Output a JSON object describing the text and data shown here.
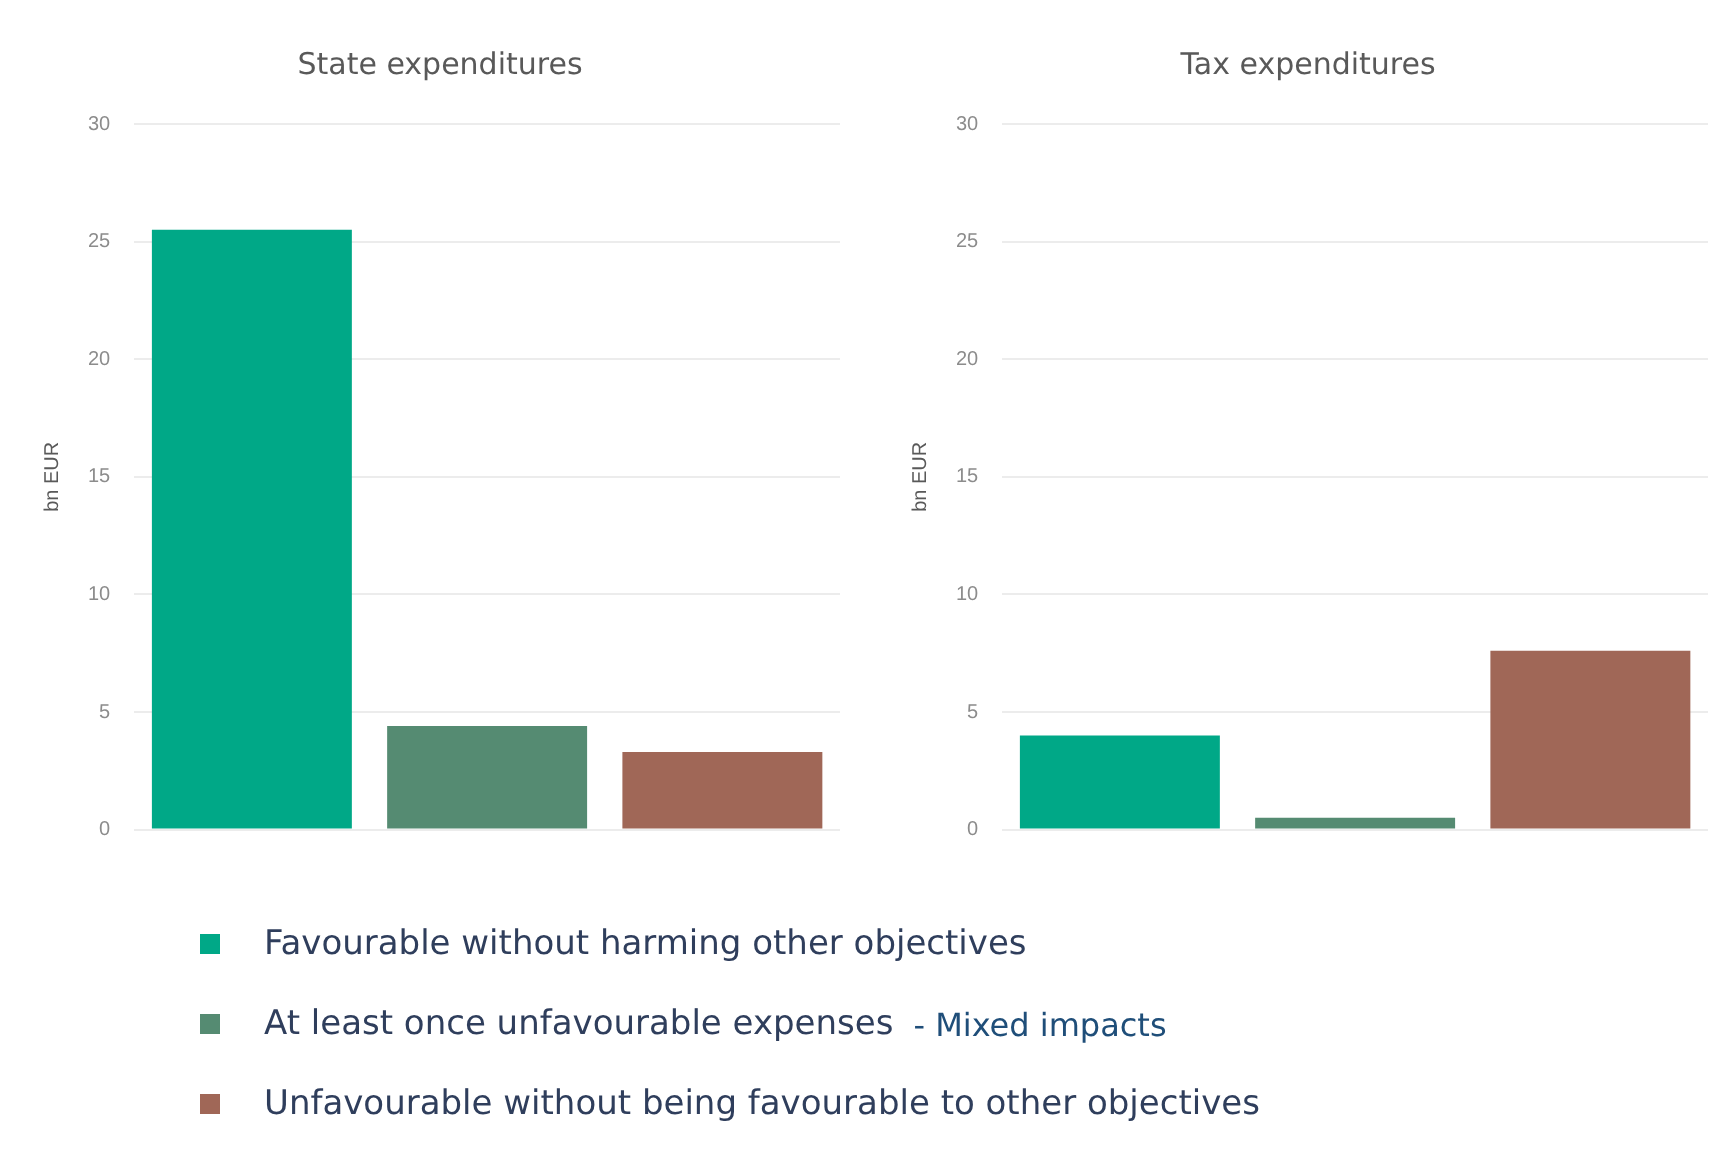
{
  "chart_data": [
    {
      "type": "bar",
      "title": "State expenditures",
      "ylabel": "bn EUR",
      "categories": [
        null,
        null,
        null
      ],
      "series": [
        {
          "name": "Favourable without harming other objectives",
          "color": "#00a887",
          "values": [
            25.5,
            null,
            null
          ]
        },
        {
          "name": "At least once unfavourable expenses",
          "color": "#558b72",
          "values": [
            null,
            4.4,
            null
          ]
        },
        {
          "name": "Unfavourable without being favourable to other objectives",
          "color": "#a06757",
          "values": [
            null,
            null,
            3.3
          ]
        }
      ],
      "ylim": [
        0,
        30
      ],
      "yticks": [
        0,
        5,
        10,
        15,
        20,
        25,
        30
      ],
      "grid": "y",
      "legend": "bottom",
      "annotations": [
        "- Mixed impacts"
      ]
    },
    {
      "type": "bar",
      "title": "Tax expenditures",
      "ylabel": "bn EUR",
      "categories": [
        null,
        null,
        null
      ],
      "series": [
        {
          "color": "#00a887",
          "values": [
            4.0,
            null,
            null
          ]
        },
        {
          "color": "#558b72",
          "values": [
            null,
            0.5,
            null
          ]
        },
        {
          "color": "#a06757",
          "values": [
            null,
            null,
            7.6
          ]
        }
      ],
      "ylim": [
        0,
        30
      ],
      "yticks": [
        0,
        5,
        10,
        15,
        20,
        25,
        30
      ],
      "grid": "y",
      "legend": false
    }
  ]
}
